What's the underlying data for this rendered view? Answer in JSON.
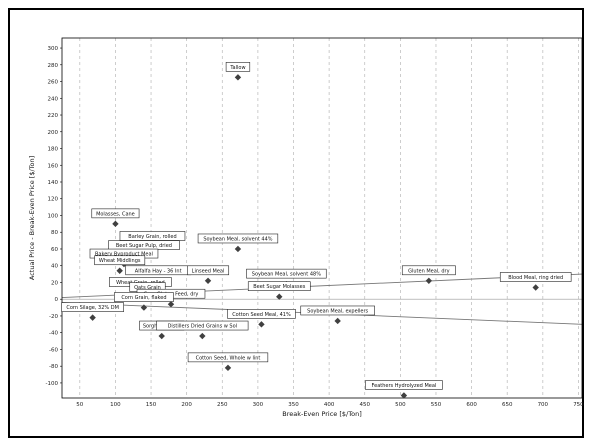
{
  "chart_data": {
    "type": "scatter",
    "title": "",
    "xlabel": "Break-Even Price [$/Ton]",
    "ylabel": "Actual Price - Break-Even Price [$/Ton]",
    "xlim": [
      25,
      755
    ],
    "ylim": [
      -118,
      312
    ],
    "xticks": [
      50,
      100,
      150,
      200,
      250,
      300,
      350,
      400,
      450,
      500,
      550,
      600,
      650,
      700,
      750
    ],
    "yticks": [
      -100,
      -80,
      -60,
      -40,
      -20,
      0,
      20,
      40,
      60,
      80,
      100,
      120,
      140,
      160,
      180,
      200,
      220,
      240,
      260,
      280,
      300
    ],
    "grid": "vertical dashed",
    "colors": {
      "marker": "#404040",
      "trend": "#777777",
      "frame": "#000000",
      "grid": "#b8b8b8"
    },
    "points": [
      {
        "label": "Tallow",
        "x": 272,
        "y": 265
      },
      {
        "label": "Molasses, Cane",
        "x": 100,
        "y": 90
      },
      {
        "label": "Barley Grain, rolled",
        "x": 152,
        "y": 63
      },
      {
        "label": "Soybean Meal, solvent 44%",
        "x": 272,
        "y": 60
      },
      {
        "label": "Beet Sugar Pulp, dried",
        "x": 140,
        "y": 52
      },
      {
        "label": "Bakery Byproduct Meal",
        "x": 112,
        "y": 42
      },
      {
        "label": "Wheat Middlings",
        "x": 106,
        "y": 34
      },
      {
        "label": "Alfalfa Hay - 36 Int",
        "x": 160,
        "y": 22
      },
      {
        "label": "Linseed Meal",
        "x": 230,
        "y": 22
      },
      {
        "label": "Soybean Meal, solvent 48%",
        "x": 340,
        "y": 18
      },
      {
        "label": "Gluten Meal, dry",
        "x": 540,
        "y": 22
      },
      {
        "label": "Blood Meal, ring dried",
        "x": 690,
        "y": 14
      },
      {
        "label": "Wheat Grain, rolled",
        "x": 135,
        "y": 8
      },
      {
        "label": "Oats Grain",
        "x": 145,
        "y": 2
      },
      {
        "label": "Corn Gluten Feed, dry",
        "x": 178,
        "y": -6
      },
      {
        "label": "Corn Grain, flaked",
        "x": 140,
        "y": -10
      },
      {
        "label": "Beet Sugar Molasses",
        "x": 330,
        "y": 3
      },
      {
        "label": "Corn Silage, 32% DM",
        "x": 68,
        "y": -22
      },
      {
        "label": "Cotton Seed Meal, 41%",
        "x": 305,
        "y": -30
      },
      {
        "label": "Soybean Meal, expellers",
        "x": 412,
        "y": -26
      },
      {
        "label": "Sorghum Grain",
        "x": 165,
        "y": -44
      },
      {
        "label": "Distillers Dried Grains w Sol",
        "x": 222,
        "y": -44
      },
      {
        "label": "Cotton Seed, Whole w lint",
        "x": 258,
        "y": -82
      },
      {
        "label": "Feathers Hydrolyzed Meal",
        "x": 505,
        "y": -115
      }
    ],
    "trend_lines": [
      {
        "x": [
          25,
          755
        ],
        "y": [
          2,
          30
        ]
      },
      {
        "x": [
          25,
          755
        ],
        "y": [
          -4,
          -30
        ]
      }
    ]
  }
}
